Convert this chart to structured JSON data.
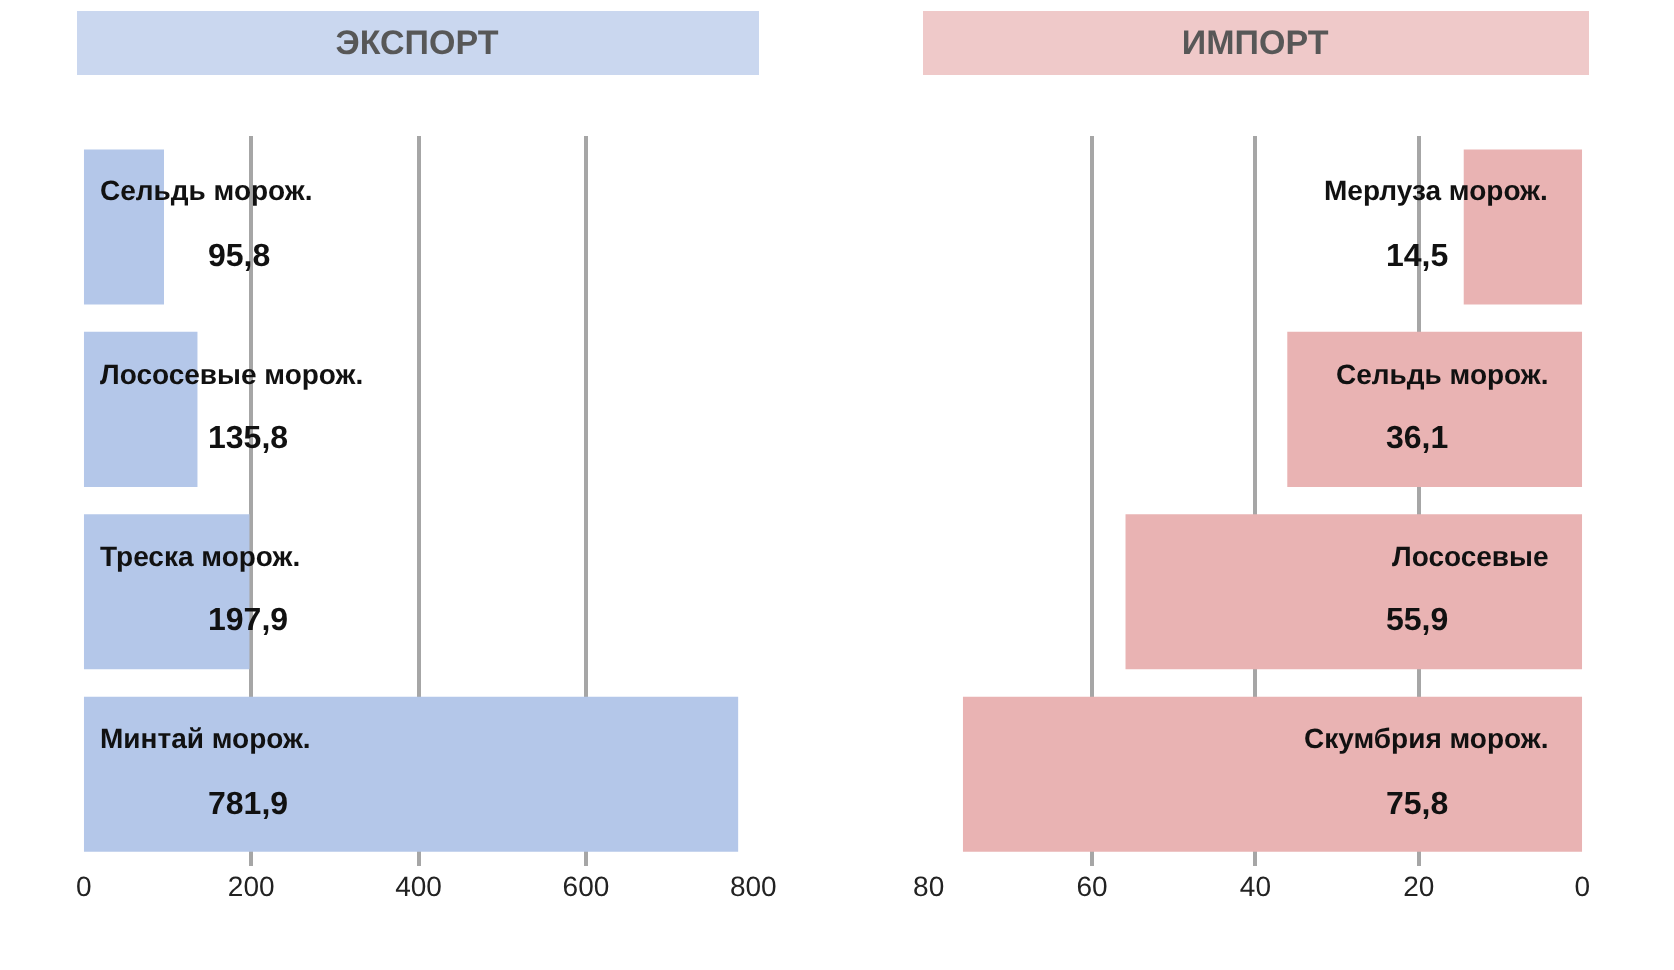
{
  "chart_data": [
    {
      "type": "bar",
      "title": "ЭКСПОРТ",
      "orientation": "horizontal",
      "categories": [
        "Сельдь морож.",
        "Лососевые морож.",
        "Треска морож.",
        "Минтай морож."
      ],
      "values": [
        95.8,
        135.8,
        197.9,
        781.9
      ],
      "value_labels": [
        "95,8",
        "135,8",
        "197,9",
        "781,9"
      ],
      "color": "#b4c7e9",
      "xlim": [
        0,
        800
      ],
      "xticks": [
        0,
        200,
        400,
        600,
        800
      ],
      "grid": "x",
      "tick_labels": "x"
    },
    {
      "type": "bar",
      "title": "ИМПОРТ",
      "orientation": "horizontal",
      "categories": [
        "Мерлуза морож.",
        "Сельдь морож.",
        "Лососевые",
        "Скумбрия морож."
      ],
      "values": [
        14.5,
        36.1,
        55.9,
        75.8
      ],
      "value_labels": [
        "14,5",
        "36,1",
        "55,9",
        "75,8"
      ],
      "color": "#e9b3b3",
      "xlim": [
        80,
        0
      ],
      "xticks": [
        80,
        60,
        40,
        20,
        0
      ],
      "grid": "x",
      "tick_labels": "x"
    }
  ]
}
